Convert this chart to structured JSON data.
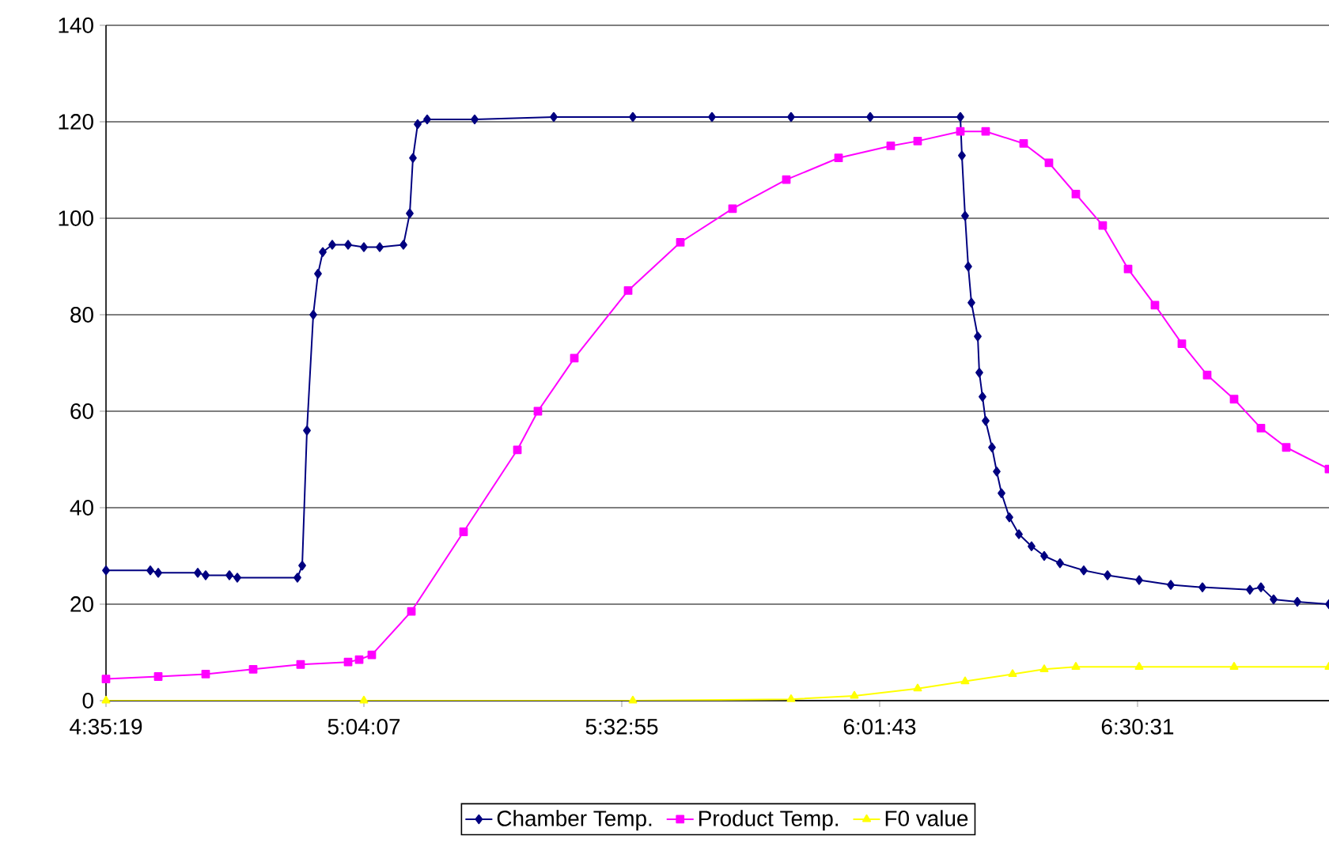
{
  "chart_data": {
    "type": "line",
    "xlim": [
      4.5886,
      6.865
    ],
    "xticks": [
      {
        "value": 4.588611,
        "label": "4:35:19"
      },
      {
        "value": 5.068611,
        "label": "5:04:07"
      },
      {
        "value": 5.548611,
        "label": "5:32:55"
      },
      {
        "value": 6.028611,
        "label": "6:01:43"
      },
      {
        "value": 6.508611,
        "label": "6:30:31"
      }
    ],
    "ylim": [
      0,
      140
    ],
    "yticks": [
      0,
      20,
      40,
      60,
      80,
      100,
      120,
      140
    ],
    "grid": "y",
    "legend": "bottom",
    "series": [
      {
        "name": "Chamber Temp.",
        "color": "#000080",
        "marker": "diamond",
        "x": [
          4.5886,
          4.6711,
          4.6858,
          4.7594,
          4.7741,
          4.8183,
          4.833,
          4.9449,
          4.9538,
          4.9626,
          4.9744,
          4.9832,
          4.9921,
          5.0097,
          5.0392,
          5.0686,
          5.0981,
          5.1422,
          5.154,
          5.1599,
          5.1687,
          5.1864,
          5.2748,
          5.422,
          5.5692,
          5.7165,
          5.8637,
          6.011,
          6.1788,
          6.1817,
          6.1876,
          6.1935,
          6.1994,
          6.2112,
          6.2141,
          6.22,
          6.2259,
          6.2377,
          6.2465,
          6.2554,
          6.2701,
          6.2878,
          6.3113,
          6.3349,
          6.3643,
          6.4085,
          6.4527,
          6.5116,
          6.5705,
          6.6294,
          6.7177,
          6.7383,
          6.7619,
          6.806,
          6.8649
        ],
        "values": [
          27,
          27,
          26.5,
          26.5,
          26,
          26,
          25.5,
          25.5,
          28,
          56,
          80,
          88.5,
          93,
          94.5,
          94.5,
          94,
          94,
          94.5,
          101,
          112.5,
          119.5,
          120.5,
          120.5,
          121,
          121,
          121,
          121,
          121,
          121,
          113,
          100.5,
          90,
          82.5,
          75.5,
          68,
          63,
          58,
          52.5,
          47.5,
          43,
          38,
          34.5,
          32,
          30,
          28.5,
          27,
          26,
          25,
          24,
          23.5,
          23,
          23.5,
          21,
          20.5,
          20
        ]
      },
      {
        "name": "Product Temp.",
        "color": "#ff00ff",
        "marker": "square",
        "x": [
          4.5886,
          4.6858,
          4.7741,
          4.8625,
          4.9508,
          5.0392,
          5.0598,
          5.0833,
          5.157,
          5.2541,
          5.3543,
          5.3925,
          5.4603,
          5.5604,
          5.6576,
          5.7548,
          5.8549,
          5.9521,
          6.0492,
          6.0993,
          6.1788,
          6.2259,
          6.2966,
          6.3437,
          6.3938,
          6.4438,
          6.491,
          6.541,
          6.5911,
          6.6382,
          6.6883,
          6.7383,
          6.7854,
          6.8649
        ],
        "values": [
          4.5,
          5,
          5.5,
          6.5,
          7.5,
          8,
          8.5,
          9.5,
          18.5,
          35,
          52,
          60,
          71,
          85,
          95,
          102,
          108,
          112.5,
          115,
          116,
          118,
          118,
          115.5,
          111.5,
          105,
          98.5,
          89.5,
          82,
          74,
          67.5,
          62.5,
          56.5,
          52.5,
          48
        ]
      },
      {
        "name": "F0 value",
        "color": "#ffff00",
        "marker": "triangle",
        "x": [
          4.5886,
          5.0686,
          5.5692,
          5.8637,
          5.9815,
          6.0993,
          6.1876,
          6.276,
          6.3349,
          6.3938,
          6.5116,
          6.6883,
          6.8649
        ],
        "values": [
          0,
          0,
          0,
          0.3,
          1,
          2.5,
          4,
          5.5,
          6.5,
          7,
          7,
          7,
          7
        ]
      }
    ]
  }
}
